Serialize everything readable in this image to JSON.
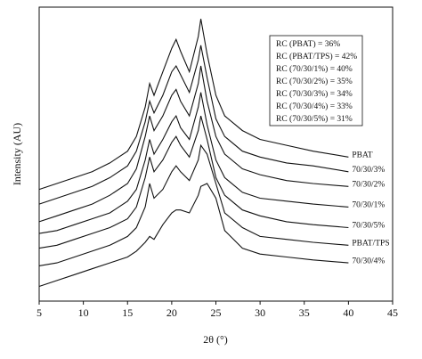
{
  "chart_data": {
    "type": "line",
    "xlabel": "2θ (°)",
    "ylabel": "Intensity (AU)",
    "x": [
      5,
      7,
      9,
      11,
      13,
      15,
      16,
      17,
      17.5,
      18,
      19,
      20,
      20.5,
      21,
      22,
      23,
      23.3,
      24,
      25,
      26,
      28,
      30,
      33,
      36,
      40
    ],
    "series": [
      {
        "name": "PBAT",
        "color": "#111111",
        "values": [
          38,
          40,
          42,
          44,
          47,
          51,
          56,
          66,
          74,
          70,
          78,
          86,
          89,
          85,
          78,
          90,
          96,
          84,
          70,
          63,
          58,
          55,
          53,
          51,
          49
        ]
      },
      {
        "name": "70/30/3%",
        "color": "#111111",
        "values": [
          33,
          35,
          37,
          39,
          42,
          46,
          51,
          61,
          68,
          64,
          70,
          78,
          80,
          77,
          71,
          82,
          87,
          76,
          62,
          56,
          51,
          49,
          47,
          46,
          44
        ]
      },
      {
        "name": "70/30/2%",
        "color": "#111111",
        "values": [
          27,
          29,
          31,
          33,
          36,
          40,
          45,
          56,
          63,
          58,
          63,
          70,
          72,
          68,
          63,
          74,
          80,
          68,
          56,
          50,
          45,
          43,
          41,
          40,
          39
        ]
      },
      {
        "name": "70/30/1%",
        "color": "#111111",
        "values": [
          23,
          24,
          26,
          28,
          30,
          34,
          38,
          48,
          55,
          50,
          55,
          61,
          63,
          59,
          55,
          66,
          71,
          60,
          48,
          42,
          37,
          35,
          34,
          33,
          32
        ]
      },
      {
        "name": "70/30/5%",
        "color": "#111111",
        "values": [
          18,
          19,
          21,
          23,
          25,
          28,
          32,
          42,
          49,
          44,
          48,
          54,
          56,
          53,
          49,
          58,
          63,
          55,
          42,
          36,
          31,
          29,
          27,
          26,
          25
        ]
      },
      {
        "name": "PBAT/TPS",
        "color": "#111111",
        "values": [
          12,
          13,
          15,
          17,
          19,
          22,
          25,
          32,
          40,
          35,
          38,
          44,
          46,
          44,
          41,
          48,
          53,
          50,
          40,
          30,
          25,
          22,
          21,
          20,
          19
        ]
      },
      {
        "name": "70/30/4%",
        "color": "#111111",
        "values": [
          5,
          7,
          9,
          11,
          13,
          15,
          17,
          20,
          22,
          21,
          26,
          30,
          31,
          31,
          30,
          36,
          39,
          40,
          35,
          24,
          18,
          16,
          15,
          14,
          13
        ]
      }
    ],
    "annotations": [
      "RC (PBAT) = 36%",
      "RC (PBAT/TPS) = 42%",
      "RC (70/30/1%) = 40%",
      "RC (70/30/2%) = 35%",
      "RC (70/30/3%) = 34%",
      "RC (70/30/4%) = 33%",
      "RC (70/30/5%) = 31%"
    ],
    "xlim": [
      5,
      45
    ],
    "xticks": [
      5,
      10,
      15,
      20,
      25,
      30,
      35,
      40,
      45
    ],
    "ylim": [
      0,
      100
    ]
  }
}
